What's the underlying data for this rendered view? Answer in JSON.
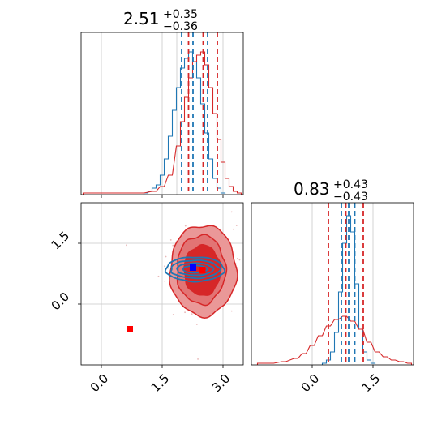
{
  "chart_data": {
    "type": "corner",
    "parameters": [
      {
        "title_value": "2.51",
        "title_plus": "+0.35",
        "title_minus": "−0.36",
        "range": [
          -0.5,
          3.5
        ],
        "ticks": [
          "0.0",
          "1.5",
          "3.0"
        ],
        "tick_values": [
          0.0,
          1.5,
          3.0
        ],
        "blue_quantiles": [
          1.98,
          2.26,
          2.62
        ],
        "red_quantiles": [
          2.15,
          2.51,
          2.86
        ]
      },
      {
        "title_value": "0.83",
        "title_plus": "+0.43",
        "title_minus": "−0.43",
        "range": [
          -1.5,
          2.5
        ],
        "ticks": [
          "0.0",
          "1.5"
        ],
        "tick_values": [
          0.0,
          1.5
        ],
        "blue_quantiles": [
          0.72,
          0.9,
          1.05
        ],
        "red_quantiles": [
          0.4,
          0.83,
          1.26
        ]
      }
    ],
    "series": [
      {
        "name": "",
        "color": "#1f77b4",
        "hist_p1": {
          "x": [
            1.1,
            1.2,
            1.3,
            1.4,
            1.5,
            1.6,
            1.7,
            1.8,
            1.9,
            2.0,
            2.1,
            2.2,
            2.3,
            2.4,
            2.5,
            2.6,
            2.7,
            2.8,
            2.9,
            3.0
          ],
          "y": [
            0.01,
            0.02,
            0.04,
            0.06,
            0.12,
            0.22,
            0.36,
            0.52,
            0.66,
            0.78,
            0.84,
            0.88,
            0.82,
            0.72,
            0.56,
            0.38,
            0.22,
            0.1,
            0.04,
            0.01
          ]
        },
        "hist_p2": {
          "x": [
            0.3,
            0.4,
            0.5,
            0.6,
            0.7,
            0.8,
            0.9,
            1.0,
            1.1,
            1.2,
            1.3,
            1.4,
            1.5
          ],
          "y": [
            0.01,
            0.03,
            0.08,
            0.2,
            0.45,
            0.75,
            0.92,
            0.82,
            0.5,
            0.22,
            0.08,
            0.03,
            0.01
          ]
        },
        "contour_center": [
          2.26,
          0.9
        ]
      },
      {
        "name": "",
        "color": "#d62728",
        "hist_p1": {
          "x": [
            -0.4,
            0.0,
            0.5,
            1.0,
            1.3,
            1.5,
            1.7,
            1.9,
            2.0,
            2.1,
            2.2,
            2.3,
            2.4,
            2.5,
            2.6,
            2.7,
            2.8,
            2.9,
            3.0,
            3.1,
            3.2,
            3.3,
            3.4
          ],
          "y": [
            0.01,
            0.01,
            0.01,
            0.01,
            0.02,
            0.05,
            0.12,
            0.3,
            0.45,
            0.6,
            0.72,
            0.82,
            0.86,
            0.88,
            0.8,
            0.66,
            0.5,
            0.34,
            0.2,
            0.1,
            0.05,
            0.02,
            0.01
          ]
        },
        "hist_p2": {
          "x": [
            -1.3,
            -1.0,
            -0.7,
            -0.4,
            -0.2,
            0.0,
            0.2,
            0.4,
            0.6,
            0.8,
            1.0,
            1.2,
            1.4,
            1.6,
            1.8,
            2.0,
            2.2,
            2.4
          ],
          "y": [
            0.01,
            0.01,
            0.02,
            0.04,
            0.07,
            0.12,
            0.18,
            0.24,
            0.28,
            0.3,
            0.27,
            0.22,
            0.14,
            0.08,
            0.05,
            0.03,
            0.02,
            0.01
          ]
        },
        "contour_center": [
          2.51,
          0.83
        ]
      }
    ],
    "markers": [
      {
        "shape": "square",
        "color": "#ff0000",
        "x": 0.7,
        "y": -0.62
      },
      {
        "shape": "square",
        "color": "#0000ff",
        "x": 2.26,
        "y": 0.9
      },
      {
        "shape": "square",
        "color": "#ff0000",
        "x": 2.49,
        "y": 0.84
      }
    ],
    "grid": true
  }
}
